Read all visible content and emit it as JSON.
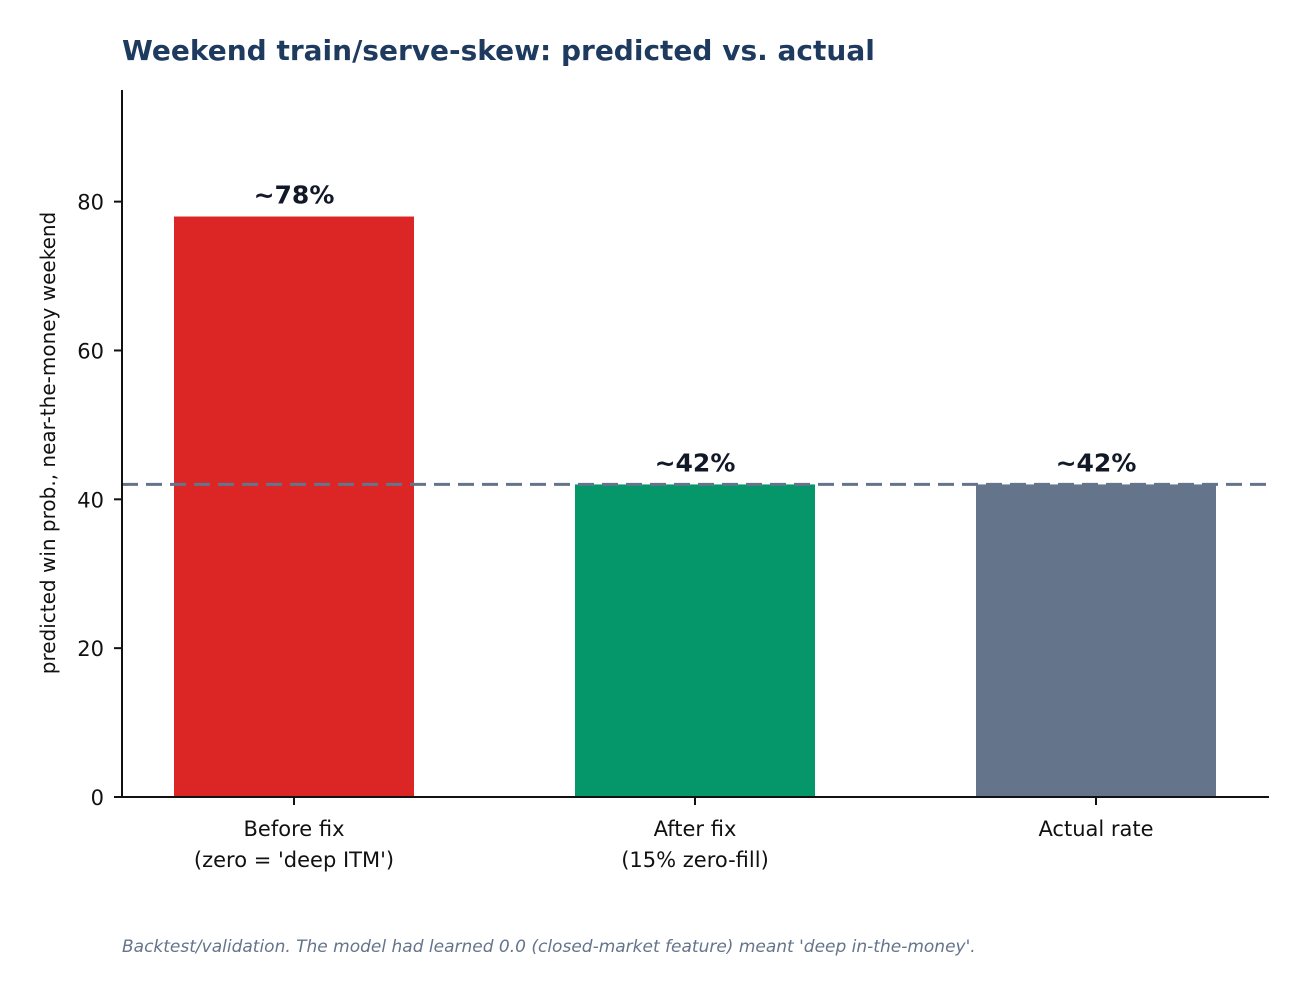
{
  "chart_data": {
    "type": "bar",
    "title": "Weekend train/serve-skew: predicted vs. actual",
    "ylabel": "predicted win prob., near-the-money weekend",
    "xlabel": "",
    "categories": [
      [
        "Before fix",
        "(zero = 'deep ITM')"
      ],
      [
        "After fix",
        "(15% zero-fill)"
      ],
      [
        "Actual rate"
      ]
    ],
    "values": [
      78,
      42,
      42
    ],
    "value_labels": [
      "~78%",
      "~42%",
      "~42%"
    ],
    "bar_colors": [
      "#dc2626",
      "#059669",
      "#64748b"
    ],
    "ylim": [
      0,
      95
    ],
    "yticks": [
      0,
      20,
      40,
      60,
      80
    ],
    "reference_line": {
      "value": 42,
      "style": "dashed",
      "color": "#64748b"
    },
    "grid": false,
    "legend": "none",
    "footnote": "Backtest/validation. The model had learned 0.0 (closed-market feature) meant 'deep in-the-money'.",
    "colors": {
      "title": "#1e3a5f",
      "footnote": "#64748b",
      "axis": "#111111"
    }
  }
}
